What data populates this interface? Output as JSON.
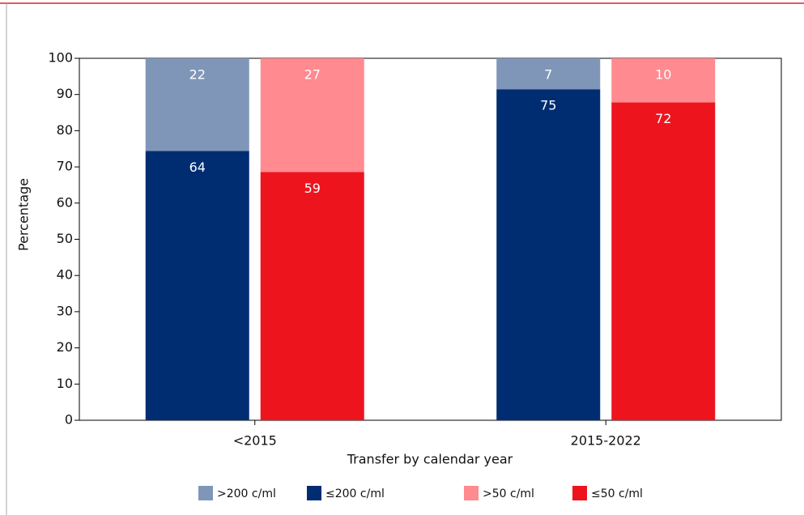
{
  "chart_data": {
    "type": "bar",
    "categories": [
      "<2015",
      "2015-2022"
    ],
    "series": [
      {
        "name": "≤200 c/ml",
        "color": "#002d72",
        "stack": "a",
        "values": [
          74.42,
          91.46
        ],
        "value_labels": [
          "64",
          "75"
        ]
      },
      {
        "name": ">200 c/ml",
        "color": "#8096b8",
        "stack": "a",
        "values": [
          25.58,
          8.54
        ],
        "value_labels": [
          "22",
          "7"
        ]
      },
      {
        "name": "≤50 c/ml",
        "color": "#ee141e",
        "stack": "b",
        "values": [
          68.6,
          87.8
        ],
        "value_labels": [
          "59",
          "72"
        ]
      },
      {
        "name": ">50 c/ml",
        "color": "#ff8a8f",
        "stack": "b",
        "values": [
          31.4,
          12.2
        ],
        "value_labels": [
          "27",
          "10"
        ]
      }
    ],
    "y_label": "Percentage",
    "x_label": "Transfer by calendar year",
    "ylim": [
      0,
      100
    ],
    "yticks": [
      0,
      10,
      20,
      30,
      40,
      50,
      60,
      70,
      80,
      90,
      100
    ],
    "legend": "bottom"
  }
}
